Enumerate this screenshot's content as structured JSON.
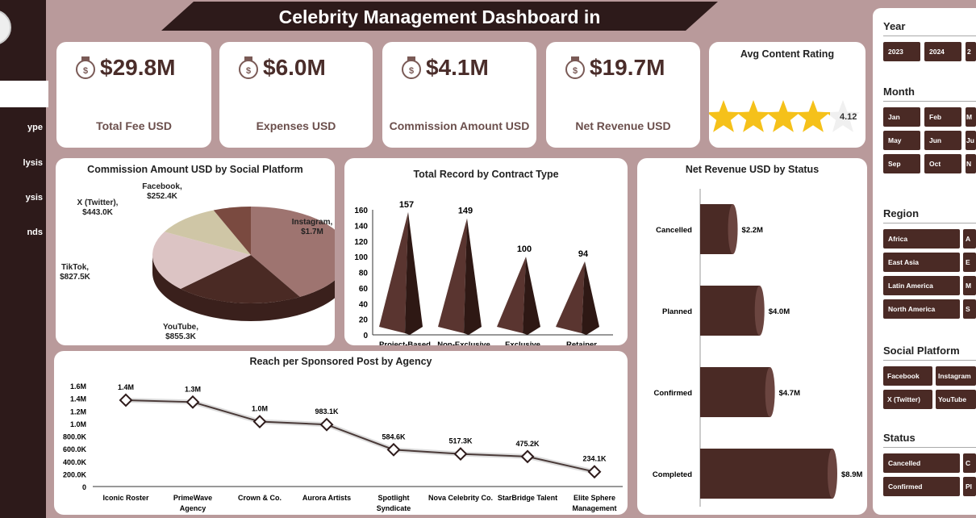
{
  "title": "Celebrity Management Dashboard in",
  "sidebar": {
    "items": [
      {
        "label": "ype"
      },
      {
        "label": "lysis"
      },
      {
        "label": "ysis"
      },
      {
        "label": "nds"
      }
    ]
  },
  "kpis": [
    {
      "value": "$29.8M",
      "label": "Total Fee USD",
      "icon": "money-bag-hand-icon"
    },
    {
      "value": "$6.0M",
      "label": "Expenses USD",
      "icon": "money-bag-growth-icon"
    },
    {
      "value": "$4.1M",
      "label": "Commission Amount USD",
      "icon": "money-bag-coins-icon"
    },
    {
      "value": "$19.7M",
      "label": "Net Revenue USD",
      "icon": "cash-coins-icon"
    }
  ],
  "rating": {
    "title": "Avg Content Rating",
    "value": "4.12",
    "score": 4.12,
    "max": 5,
    "star_color": "#f5c11a"
  },
  "colors": {
    "dark": "#2d1a1a",
    "bar": "#4a2a25",
    "background": "#b99a9b"
  },
  "chart_data": [
    {
      "type": "pie",
      "title": "Commission Amount USD by Social Platform",
      "categories": [
        "Instagram",
        "YouTube",
        "TikTok",
        "X (Twitter)",
        "Facebook"
      ],
      "values": [
        1700000,
        855300,
        827500,
        443000,
        252400
      ],
      "labels": [
        "$1.7M",
        "$855.3K",
        "$827.5K",
        "$443.0K",
        "$252.4K"
      ],
      "colors": [
        "#9e7470",
        "#4a2a24",
        "#dcc4c4",
        "#cfc6a6",
        "#7a4a40"
      ]
    },
    {
      "type": "bar",
      "title": "Total Record by Contract Type",
      "categories": [
        "Project-Based",
        "Non-Exclusive",
        "Exclusive",
        "Retainer"
      ],
      "values": [
        157,
        149,
        100,
        94
      ],
      "ylim": [
        0,
        160
      ],
      "yticks": [
        0,
        20,
        40,
        60,
        80,
        100,
        120,
        140,
        160
      ]
    },
    {
      "type": "bar",
      "orientation": "horizontal",
      "title": "Net Revenue USD by Status",
      "categories": [
        "Cancelled",
        "Planned",
        "Confirmed",
        "Completed"
      ],
      "values": [
        2.2,
        4.0,
        4.7,
        8.9
      ],
      "labels": [
        "$2.2M",
        "$4.0M",
        "$4.7M",
        "$8.9M"
      ],
      "unit": "M USD"
    },
    {
      "type": "line",
      "title": "Reach per Sponsored Post by Agency",
      "categories": [
        "Iconic Roster",
        "PrimeWave Agency",
        "Crown & Co.",
        "Aurora Artists",
        "Spotlight Syndicate",
        "Nova Celebrity Co.",
        "StarBridge Talent",
        "Elite Sphere Management"
      ],
      "values": [
        1370000,
        1340000,
        1030000,
        983100,
        584600,
        517300,
        475200,
        234100
      ],
      "labels": [
        "1.4M",
        "1.3M",
        "1.0M",
        "983.1K",
        "584.6K",
        "517.3K",
        "475.2K",
        "234.1K"
      ],
      "ylim": [
        0,
        1600000
      ],
      "ytick_labels": [
        "0",
        "200.0K",
        "400.0K",
        "600.0K",
        "800.0K",
        "1.0M",
        "1.2M",
        "1.4M",
        "1.6M"
      ]
    }
  ],
  "filters": {
    "year": {
      "title": "Year",
      "options": [
        "2023",
        "2024",
        "2"
      ]
    },
    "month": {
      "title": "Month",
      "options": [
        "Jan",
        "Feb",
        "M",
        "May",
        "Jun",
        "Ju",
        "Sep",
        "Oct",
        "N"
      ]
    },
    "region": {
      "title": "Region",
      "options": [
        "Africa",
        "A",
        "East Asia",
        "E",
        "Latin America",
        "M",
        "North America",
        "S"
      ]
    },
    "platform": {
      "title": "Social Platform",
      "options": [
        "Facebook",
        "Instagram",
        "X (Twitter)",
        "YouTube"
      ]
    },
    "status": {
      "title": "Status",
      "options": [
        "Cancelled",
        "C",
        "Confirmed",
        "Pl"
      ]
    }
  }
}
